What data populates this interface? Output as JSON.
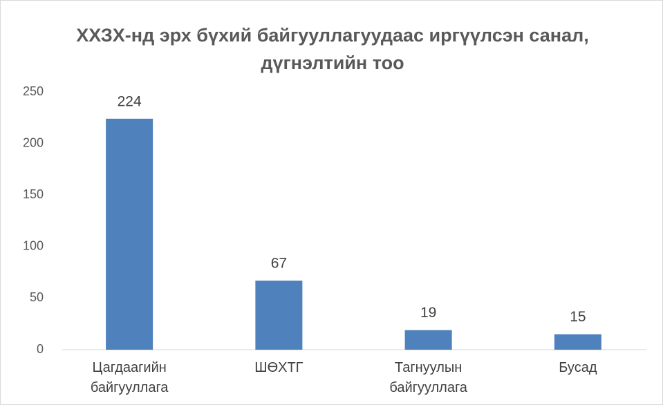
{
  "chart_data": {
    "type": "bar",
    "title": "ХХЗХ-нд эрх бүхий байгууллагуудаас  иргүүлсэн санал, дүгнэлтийн тоо",
    "categories": [
      "Цагдаагийн байгууллага",
      "ШӨХТГ",
      "Тагнуулын байгууллага",
      "Бусад"
    ],
    "values": [
      224,
      67,
      19,
      15
    ],
    "color": "#4f81bd",
    "ylim": [
      0,
      250
    ],
    "yticks": [
      0,
      50,
      100,
      150,
      200,
      250
    ],
    "grid": false
  }
}
